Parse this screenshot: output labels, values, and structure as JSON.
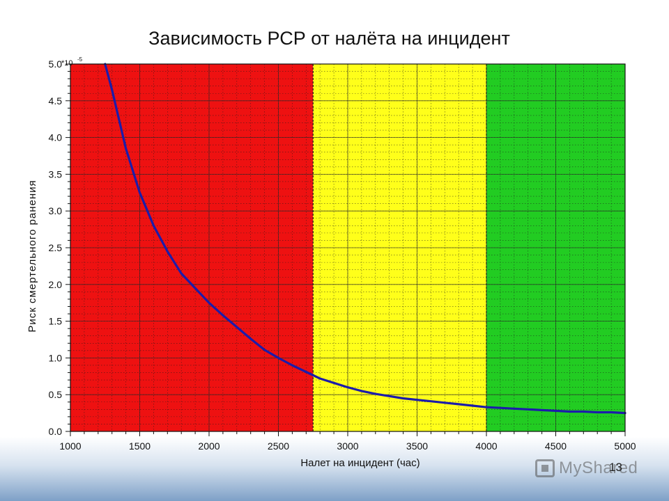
{
  "slide": {
    "title": "Зависимость РСР от налёта на инцидент",
    "page_number": "13",
    "watermark": "MyShared"
  },
  "chart_data": {
    "type": "line",
    "title": "Зависимость РСР от налёта на инцидент",
    "xlabel": "Налет на инцидент (час)",
    "ylabel": "Риск смертельного ранения",
    "y_multiplier_label": "*10",
    "y_multiplier_exponent": "-5",
    "xlim": [
      1000,
      5000
    ],
    "ylim": [
      0.0,
      5.0
    ],
    "x_ticks": [
      1000,
      1500,
      2000,
      2500,
      3000,
      3500,
      4000,
      4500,
      5000
    ],
    "y_ticks": [
      "0.0",
      "0.5",
      "1.0",
      "1.5",
      "2.0",
      "2.5",
      "3.0",
      "3.5",
      "4.0",
      "4.5",
      "5.0"
    ],
    "grid": true,
    "zones": [
      {
        "from": 1000,
        "to": 2750,
        "color": "#ee1111"
      },
      {
        "from": 2750,
        "to": 4000,
        "color": "#ffff1a"
      },
      {
        "from": 4000,
        "to": 5000,
        "color": "#22cc22"
      }
    ],
    "series": [
      {
        "color": "#1c1caa",
        "points": [
          [
            1250,
            5.0
          ],
          [
            1300,
            4.65
          ],
          [
            1400,
            3.85
          ],
          [
            1500,
            3.25
          ],
          [
            1600,
            2.8
          ],
          [
            1700,
            2.45
          ],
          [
            1800,
            2.15
          ],
          [
            1900,
            1.95
          ],
          [
            2000,
            1.75
          ],
          [
            2100,
            1.58
          ],
          [
            2200,
            1.42
          ],
          [
            2300,
            1.26
          ],
          [
            2400,
            1.11
          ],
          [
            2500,
            1.0
          ],
          [
            2600,
            0.9
          ],
          [
            2700,
            0.81
          ],
          [
            2800,
            0.72
          ],
          [
            2900,
            0.66
          ],
          [
            3000,
            0.6
          ],
          [
            3100,
            0.55
          ],
          [
            3200,
            0.51
          ],
          [
            3300,
            0.48
          ],
          [
            3400,
            0.45
          ],
          [
            3500,
            0.43
          ],
          [
            3600,
            0.41
          ],
          [
            3700,
            0.39
          ],
          [
            3800,
            0.37
          ],
          [
            3900,
            0.35
          ],
          [
            4000,
            0.33
          ],
          [
            4100,
            0.32
          ],
          [
            4200,
            0.31
          ],
          [
            4300,
            0.3
          ],
          [
            4400,
            0.29
          ],
          [
            4500,
            0.28
          ],
          [
            4600,
            0.27
          ],
          [
            4700,
            0.27
          ],
          [
            4800,
            0.26
          ],
          [
            4900,
            0.26
          ],
          [
            5000,
            0.25
          ]
        ]
      }
    ]
  }
}
